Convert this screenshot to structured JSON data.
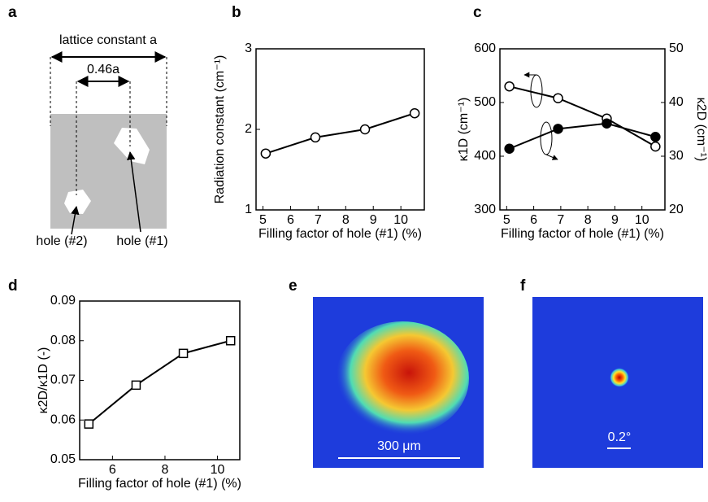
{
  "chart_data": [
    {
      "type": "line",
      "panel_label": "b",
      "xlabel": "Filling factor of hole (#1) (%)",
      "ylabel": "Radiation constant (cm⁻¹)",
      "x": [
        5.1,
        6.9,
        8.7,
        10.5
      ],
      "series": [
        {
          "color": "#000000",
          "marker": "open-circle",
          "values": [
            1.7,
            1.9,
            2.0,
            2.2
          ]
        }
      ],
      "xlim": [
        4.75,
        10.85
      ],
      "xticks": [
        5,
        6,
        7,
        8,
        9,
        10
      ],
      "ylim": [
        1,
        3
      ],
      "yticks": [
        1,
        2,
        3
      ]
    },
    {
      "type": "line",
      "panel_label": "c",
      "xlabel": "Filling factor of hole (#1) (%)",
      "ylabel": "κ1D (cm⁻¹)",
      "y2label": "κ2D (cm⁻¹)",
      "x": [
        5.1,
        6.9,
        8.7,
        10.5
      ],
      "series": [
        {
          "color": "#000000",
          "marker": "open-circle",
          "values": [
            530,
            508,
            470,
            418
          ]
        },
        {
          "color": "#000000",
          "marker": "filled-circle",
          "axis": "y2",
          "values": [
            31.4,
            35.1,
            36.1,
            33.6
          ]
        }
      ],
      "xlim": [
        4.75,
        10.85
      ],
      "xticks": [
        5,
        6,
        7,
        8,
        9,
        10
      ],
      "ylim": [
        300,
        600
      ],
      "yticks": [
        300,
        400,
        500,
        600
      ],
      "y2lim": [
        20,
        50
      ],
      "y2ticks": [
        20,
        30,
        40,
        50
      ]
    },
    {
      "type": "line",
      "panel_label": "d",
      "xlabel": "Filling factor of hole (#1) (%)",
      "ylabel": "κ2D/κ1D (-)",
      "x": [
        5.1,
        6.9,
        8.7,
        10.5
      ],
      "series": [
        {
          "color": "#000000",
          "marker": "open-square",
          "values": [
            0.059,
            0.0688,
            0.0768,
            0.08
          ]
        }
      ],
      "xlim": [
        4.75,
        10.85
      ],
      "xticks": [
        6,
        8,
        10
      ],
      "ylim": [
        0.05,
        0.09
      ],
      "yticks": [
        0.05,
        0.06,
        0.07,
        0.08,
        0.09
      ]
    }
  ],
  "panel_a": {
    "label": "a",
    "lattice": "lattice constant a",
    "offset": "0.46a",
    "hole2": "hole (#2)",
    "hole1": "hole (#1)"
  },
  "panel_e": {
    "label": "e",
    "scale_bar": "300 μm"
  },
  "panel_f": {
    "label": "f",
    "scale_bar": "0.2°"
  }
}
